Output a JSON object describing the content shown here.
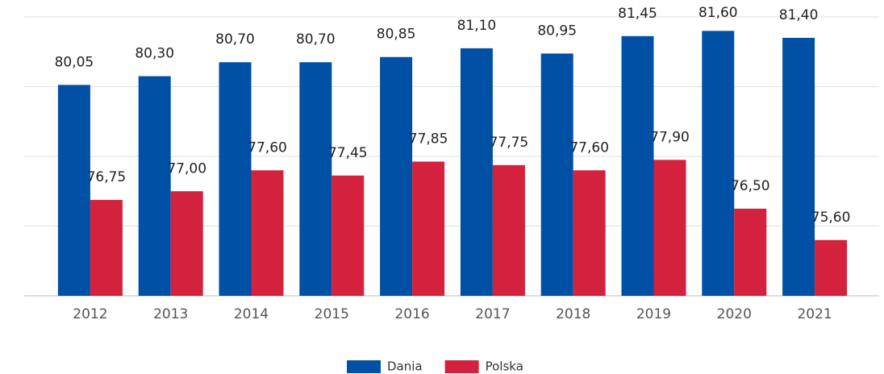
{
  "chart_data": {
    "type": "bar",
    "categories": [
      "2012",
      "2013",
      "2014",
      "2015",
      "2016",
      "2017",
      "2018",
      "2019",
      "2020",
      "2021"
    ],
    "series": [
      {
        "name": "Dania",
        "color": "#0050a6",
        "values": [
          80.05,
          80.3,
          80.7,
          80.7,
          80.85,
          81.1,
          80.95,
          81.45,
          81.6,
          81.4
        ],
        "value_labels": [
          "80,05",
          "80,30",
          "80,70",
          "80,70",
          "80,85",
          "81,10",
          "80,95",
          "81,45",
          "81,60",
          "81,40"
        ]
      },
      {
        "name": "Polska",
        "color": "#d4213d",
        "values": [
          76.75,
          77.0,
          77.6,
          77.45,
          77.85,
          77.75,
          77.6,
          77.9,
          76.5,
          75.6
        ],
        "value_labels": [
          "76,75",
          "77,00",
          "77,60",
          "77,45",
          "77,85",
          "77,75",
          "77,60",
          "77,90",
          "76,50",
          "75,60"
        ]
      }
    ],
    "ylim": [
      74,
      82
    ],
    "yticks": [
      74,
      76,
      78,
      80,
      82
    ],
    "grid": true
  }
}
